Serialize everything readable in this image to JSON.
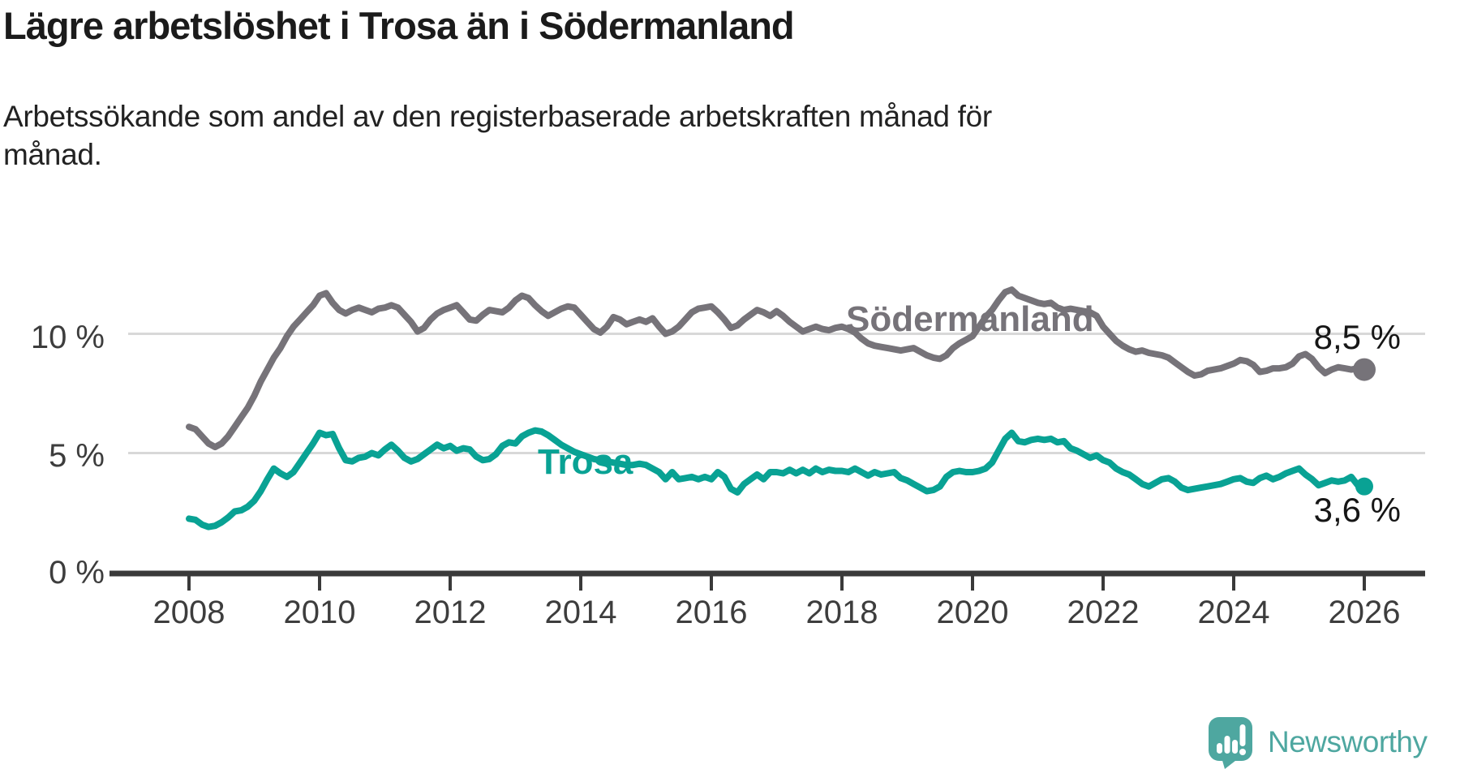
{
  "header": {
    "title": "Lägre arbetslöshet i Trosa än i Södermanland",
    "subtitle_line1": "Arbetssökande som andel av den registerbaserade arbetskraften månad för",
    "subtitle_line2": "månad."
  },
  "chart_data": {
    "type": "line",
    "title": "Lägre arbetslöshet i Trosa än i Södermanland",
    "subtitle": "Arbetssökande som andel av den registerbaserade arbetskraften månad för månad.",
    "unit": "%",
    "xlim": [
      2008,
      2026
    ],
    "ylim": [
      0,
      12.5
    ],
    "grid": "horizontal-only",
    "grid_y_values": [
      5,
      10
    ],
    "x_ticks": [
      2008,
      2010,
      2012,
      2014,
      2016,
      2018,
      2020,
      2022,
      2024,
      2026
    ],
    "x_tick_labels": [
      "2008",
      "2010",
      "2012",
      "2014",
      "2016",
      "2018",
      "2020",
      "2022",
      "2024",
      "2026"
    ],
    "y_ticks": [
      0,
      5,
      10
    ],
    "y_tick_labels": [
      "0 %",
      "5 %",
      "10 %"
    ],
    "legend_position": "inline-labels-on-lines",
    "series": [
      {
        "name": "Södermanland",
        "color": "#767379",
        "end_label": "8,5 %",
        "end_value": 8.5,
        "start_year": 2008,
        "step_years": 0.1,
        "values": [
          6.1,
          6.0,
          5.7,
          5.4,
          5.25,
          5.4,
          5.7,
          6.1,
          6.5,
          6.9,
          7.4,
          8.0,
          8.5,
          9.0,
          9.4,
          9.9,
          10.3,
          10.6,
          10.9,
          11.2,
          11.6,
          11.7,
          11.3,
          11.0,
          10.85,
          11.0,
          11.1,
          11.0,
          10.9,
          11.05,
          11.1,
          11.2,
          11.1,
          10.8,
          10.5,
          10.1,
          10.25,
          10.6,
          10.85,
          11.0,
          11.1,
          11.2,
          10.9,
          10.6,
          10.55,
          10.8,
          11.0,
          10.95,
          10.9,
          11.1,
          11.4,
          11.6,
          11.5,
          11.2,
          10.95,
          10.75,
          10.9,
          11.05,
          11.15,
          11.1,
          10.8,
          10.5,
          10.2,
          10.05,
          10.3,
          10.7,
          10.6,
          10.4,
          10.5,
          10.6,
          10.5,
          10.65,
          10.3,
          10.0,
          10.1,
          10.3,
          10.6,
          10.9,
          11.05,
          11.1,
          11.15,
          10.9,
          10.6,
          10.25,
          10.35,
          10.6,
          10.8,
          11.0,
          10.9,
          10.75,
          10.95,
          10.75,
          10.5,
          10.3,
          10.1,
          10.2,
          10.3,
          10.2,
          10.15,
          10.25,
          10.3,
          10.2,
          10.05,
          9.8,
          9.6,
          9.5,
          9.45,
          9.4,
          9.35,
          9.3,
          9.35,
          9.4,
          9.25,
          9.1,
          9.0,
          8.95,
          9.1,
          9.4,
          9.6,
          9.75,
          9.9,
          10.3,
          10.7,
          11.0,
          11.4,
          11.75,
          11.85,
          11.6,
          11.5,
          11.4,
          11.3,
          11.25,
          11.3,
          11.1,
          11.0,
          11.05,
          11.0,
          10.95,
          10.9,
          10.75,
          10.3,
          10.0,
          9.7,
          9.5,
          9.35,
          9.25,
          9.3,
          9.2,
          9.15,
          9.1,
          9.0,
          8.8,
          8.6,
          8.4,
          8.25,
          8.3,
          8.45,
          8.5,
          8.55,
          8.65,
          8.75,
          8.9,
          8.85,
          8.7,
          8.4,
          8.45,
          8.55,
          8.55,
          8.6,
          8.75,
          9.05,
          9.15,
          8.95,
          8.6,
          8.35,
          8.5,
          8.6,
          8.55,
          8.5,
          8.55,
          8.5
        ]
      },
      {
        "name": "Trosa",
        "color": "#09a294",
        "end_label": "3,6 %",
        "end_value": 3.6,
        "start_year": 2008,
        "step_years": 0.1,
        "values": [
          2.25,
          2.2,
          2.0,
          1.9,
          1.95,
          2.1,
          2.3,
          2.55,
          2.6,
          2.75,
          3.0,
          3.4,
          3.9,
          4.35,
          4.15,
          4.0,
          4.2,
          4.6,
          5.0,
          5.4,
          5.85,
          5.75,
          5.8,
          5.2,
          4.7,
          4.65,
          4.8,
          4.85,
          5.0,
          4.9,
          5.15,
          5.35,
          5.1,
          4.8,
          4.65,
          4.75,
          4.95,
          5.15,
          5.35,
          5.2,
          5.3,
          5.1,
          5.2,
          5.15,
          4.85,
          4.7,
          4.75,
          4.95,
          5.3,
          5.45,
          5.4,
          5.7,
          5.85,
          5.95,
          5.9,
          5.75,
          5.55,
          5.35,
          5.2,
          5.05,
          4.95,
          4.85,
          4.75,
          4.7,
          4.65,
          4.6,
          4.55,
          4.5,
          4.5,
          4.55,
          4.5,
          4.35,
          4.2,
          3.9,
          4.2,
          3.9,
          3.95,
          4.0,
          3.9,
          4.0,
          3.9,
          4.2,
          4.0,
          3.5,
          3.35,
          3.7,
          3.9,
          4.1,
          3.9,
          4.2,
          4.2,
          4.15,
          4.3,
          4.15,
          4.3,
          4.15,
          4.35,
          4.2,
          4.3,
          4.25,
          4.25,
          4.2,
          4.35,
          4.2,
          4.05,
          4.2,
          4.1,
          4.15,
          4.2,
          3.95,
          3.85,
          3.7,
          3.55,
          3.4,
          3.45,
          3.6,
          4.0,
          4.2,
          4.25,
          4.2,
          4.2,
          4.25,
          4.35,
          4.6,
          5.1,
          5.6,
          5.85,
          5.5,
          5.45,
          5.55,
          5.6,
          5.55,
          5.6,
          5.45,
          5.5,
          5.2,
          5.1,
          4.95,
          4.8,
          4.9,
          4.7,
          4.6,
          4.35,
          4.2,
          4.1,
          3.9,
          3.7,
          3.6,
          3.75,
          3.9,
          3.95,
          3.8,
          3.55,
          3.45,
          3.5,
          3.55,
          3.6,
          3.65,
          3.7,
          3.8,
          3.9,
          3.95,
          3.8,
          3.75,
          3.95,
          4.05,
          3.9,
          4.0,
          4.15,
          4.25,
          4.35,
          4.1,
          3.9,
          3.65,
          3.75,
          3.85,
          3.8,
          3.85,
          4.0,
          3.65,
          3.6
        ]
      }
    ],
    "colors": {
      "grid": "#d8d8d8",
      "axis": "#3a3a3a",
      "tick_text": "#3d3d3d",
      "value_label_text": "#161616"
    }
  },
  "footer": {
    "brand": "Newsworthy",
    "logo_color": "#4ea7a0",
    "logo_icon": "speech-bubble-bar-chart-exclamation"
  }
}
